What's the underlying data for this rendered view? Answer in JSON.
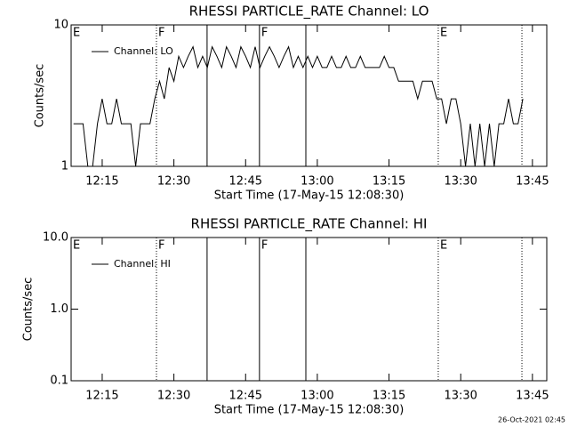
{
  "chart_data": [
    {
      "type": "line",
      "title": "RHESSI PARTICLE_RATE Channel: LO",
      "xlabel": "Start Time (17-May-15 12:08:30)",
      "ylabel": "Counts/sec",
      "yscale": "log",
      "ylim": [
        1,
        10
      ],
      "yticks": [
        1,
        10
      ],
      "xlim": [
        8.5,
        108
      ],
      "xticks": [
        {
          "value": 15,
          "label": "12:15"
        },
        {
          "value": 30,
          "label": "12:30"
        },
        {
          "value": 45,
          "label": "12:45"
        },
        {
          "value": 60,
          "label": "13:00"
        },
        {
          "value": 75,
          "label": "13:15"
        },
        {
          "value": 90,
          "label": "13:30"
        },
        {
          "value": 105,
          "label": "13:45"
        }
      ],
      "events": [
        {
          "x": 8.5,
          "style": "none",
          "label": "E"
        },
        {
          "x": 26.35,
          "style": "dotted",
          "label": "F"
        },
        {
          "x": 36.94,
          "style": "solid"
        },
        {
          "x": 47.9,
          "style": "solid",
          "label": "F"
        },
        {
          "x": 57.6,
          "style": "solid"
        },
        {
          "x": 85.3,
          "style": "dotted",
          "label": "E"
        },
        {
          "x": 102.8,
          "style": "dotted"
        }
      ],
      "x": [
        9,
        10,
        11,
        12,
        13,
        14,
        15,
        16,
        17,
        18,
        19,
        20,
        21,
        22,
        23,
        24,
        25,
        26,
        27,
        28,
        29,
        30,
        31,
        32,
        33,
        34,
        35,
        36,
        37,
        38,
        39,
        40,
        41,
        42,
        43,
        44,
        45,
        46,
        47,
        48,
        49,
        50,
        51,
        52,
        53,
        54,
        55,
        56,
        57,
        58,
        59,
        60,
        61,
        62,
        63,
        64,
        65,
        66,
        67,
        68,
        69,
        70,
        71,
        72,
        73,
        74,
        75,
        76,
        77,
        78,
        79,
        80,
        81,
        82,
        83,
        84,
        85,
        86,
        87,
        88,
        89,
        90,
        91,
        92,
        93,
        94,
        95,
        96,
        97,
        98,
        99,
        100,
        101,
        102,
        103
      ],
      "series": [
        {
          "name": "Channel: LO",
          "color": "#000000",
          "values": [
            2,
            2,
            2,
            1,
            1,
            2,
            3,
            2,
            2,
            3,
            2,
            2,
            2,
            1,
            2,
            2,
            2,
            3,
            4,
            3,
            5,
            4,
            6,
            5,
            6,
            7,
            5,
            6,
            5,
            7,
            6,
            5,
            7,
            6,
            5,
            7,
            6,
            5,
            7,
            5,
            6,
            7,
            6,
            5,
            6,
            7,
            5,
            6,
            5,
            6,
            5,
            6,
            5,
            5,
            6,
            5,
            5,
            6,
            5,
            5,
            6,
            5,
            5,
            5,
            5,
            6,
            5,
            5,
            4,
            4,
            4,
            4,
            3,
            4,
            4,
            4,
            3,
            3,
            2,
            3,
            3,
            2,
            1,
            2,
            1,
            2,
            1,
            2,
            1,
            2,
            2,
            3,
            2,
            2,
            3
          ]
        }
      ]
    },
    {
      "type": "line",
      "title": "RHESSI PARTICLE_RATE Channel: HI",
      "xlabel": "Start Time (17-May-15 12:08:30)",
      "ylabel": "Counts/sec",
      "yscale": "log",
      "ylim": [
        0.1,
        10
      ],
      "yticks": [
        0.1,
        {
          "value": 1,
          "label": "1.0"
        },
        {
          "value": 10,
          "label": "10.0"
        }
      ],
      "xlim": [
        8.5,
        108
      ],
      "xticks": [
        {
          "value": 15,
          "label": "12:15"
        },
        {
          "value": 30,
          "label": "12:30"
        },
        {
          "value": 45,
          "label": "12:45"
        },
        {
          "value": 60,
          "label": "13:00"
        },
        {
          "value": 75,
          "label": "13:15"
        },
        {
          "value": 90,
          "label": "13:30"
        },
        {
          "value": 105,
          "label": "13:45"
        }
      ],
      "events": [
        {
          "x": 8.5,
          "style": "none",
          "label": "E"
        },
        {
          "x": 26.35,
          "style": "dotted",
          "label": "F"
        },
        {
          "x": 36.94,
          "style": "solid"
        },
        {
          "x": 47.9,
          "style": "solid",
          "label": "F"
        },
        {
          "x": 57.6,
          "style": "solid"
        },
        {
          "x": 85.3,
          "style": "dotted",
          "label": "E"
        },
        {
          "x": 102.8,
          "style": "dotted"
        }
      ],
      "x": [],
      "series": [
        {
          "name": "Channel: HI",
          "color": "#000000",
          "values": []
        }
      ]
    }
  ],
  "footer": "26-Oct-2021 02:45"
}
